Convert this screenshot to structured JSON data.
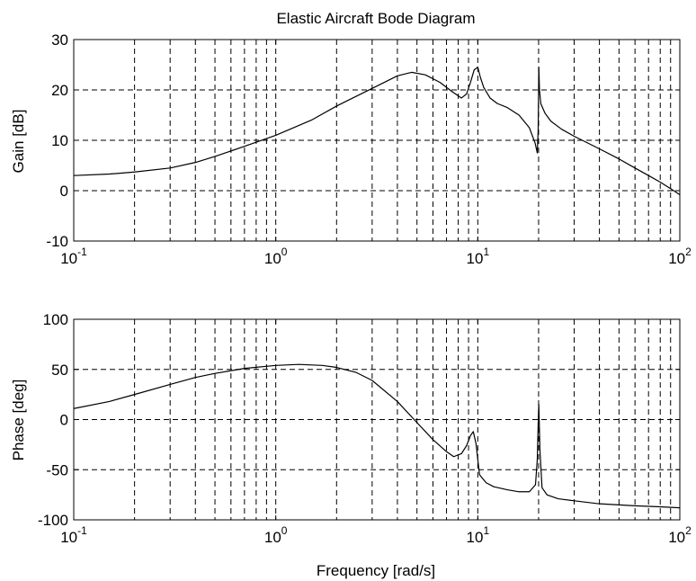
{
  "chart_data": [
    {
      "type": "line",
      "title": "Elastic Aircraft Bode Diagram",
      "xlabel": "",
      "ylabel": "Gain [dB]",
      "xscale": "log",
      "xlim": [
        0.1,
        100
      ],
      "ylim": [
        -10,
        30
      ],
      "grid": true,
      "x_ticks": [
        {
          "base": "10",
          "exp": "-1"
        },
        {
          "base": "10",
          "exp": "0"
        },
        {
          "base": "10",
          "exp": "1"
        },
        {
          "base": "10",
          "exp": "2"
        }
      ],
      "y_ticks": [
        "-10",
        "0",
        "10",
        "20",
        "30"
      ],
      "series": [
        {
          "x": [
            0.1,
            0.15,
            0.2,
            0.3,
            0.4,
            0.5,
            0.7,
            1.0,
            1.5,
            2.0,
            3.0,
            4.0,
            4.7,
            5.5,
            6.5,
            7.5,
            8.3,
            8.8,
            9.2,
            9.6,
            10.0,
            10.3,
            10.7,
            11.5,
            12.5,
            14.0,
            16.0,
            18.0,
            19.2,
            19.7,
            19.9,
            20.05,
            20.2,
            20.5,
            21.5,
            23.0,
            26.0,
            30.0,
            40.0,
            50.0,
            60.0,
            70.0,
            80.0,
            90.0,
            100.0
          ],
          "y": [
            3.0,
            3.3,
            3.7,
            4.5,
            5.6,
            6.8,
            8.8,
            11.0,
            14.0,
            16.8,
            20.3,
            22.8,
            23.5,
            23.0,
            21.5,
            19.6,
            18.4,
            19.2,
            21.5,
            24.0,
            24.5,
            22.5,
            20.5,
            18.4,
            17.3,
            16.5,
            15.0,
            12.5,
            9.5,
            7.5,
            12.0,
            24.5,
            20.0,
            17.3,
            15.4,
            13.8,
            12.2,
            10.8,
            8.3,
            6.3,
            4.5,
            3.0,
            1.7,
            0.4,
            -0.8
          ]
        }
      ]
    },
    {
      "type": "line",
      "title": "",
      "xlabel": "Frequency [rad/s]",
      "ylabel": "Phase [deg]",
      "xscale": "log",
      "xlim": [
        0.1,
        100
      ],
      "ylim": [
        -100,
        100
      ],
      "grid": true,
      "x_ticks": [
        {
          "base": "10",
          "exp": "-1"
        },
        {
          "base": "10",
          "exp": "0"
        },
        {
          "base": "10",
          "exp": "1"
        },
        {
          "base": "10",
          "exp": "2"
        }
      ],
      "y_ticks": [
        "-100",
        "-50",
        "0",
        "50",
        "100"
      ],
      "series": [
        {
          "x": [
            0.1,
            0.15,
            0.2,
            0.3,
            0.4,
            0.5,
            0.7,
            1.0,
            1.3,
            1.7,
            2.0,
            2.5,
            3.0,
            4.0,
            5.0,
            6.0,
            7.0,
            7.6,
            8.3,
            8.8,
            9.2,
            9.5,
            9.8,
            10.2,
            11.0,
            12.0,
            14.0,
            16.0,
            18.0,
            19.3,
            19.7,
            19.9,
            20.05,
            20.3,
            20.8,
            22.0,
            25.0,
            30.0,
            40.0,
            60.0,
            80.0,
            100.0
          ],
          "y": [
            11,
            18,
            25,
            35,
            42,
            46,
            51,
            54,
            55,
            54,
            52,
            47,
            39,
            18,
            -3,
            -20,
            -32,
            -37,
            -34,
            -26,
            -16,
            -12,
            -24,
            -55,
            -63,
            -67,
            -70,
            -72,
            -72,
            -65,
            -40,
            -5,
            15,
            -30,
            -68,
            -75,
            -79,
            -81,
            -84,
            -86,
            -87,
            -88
          ]
        }
      ]
    }
  ]
}
